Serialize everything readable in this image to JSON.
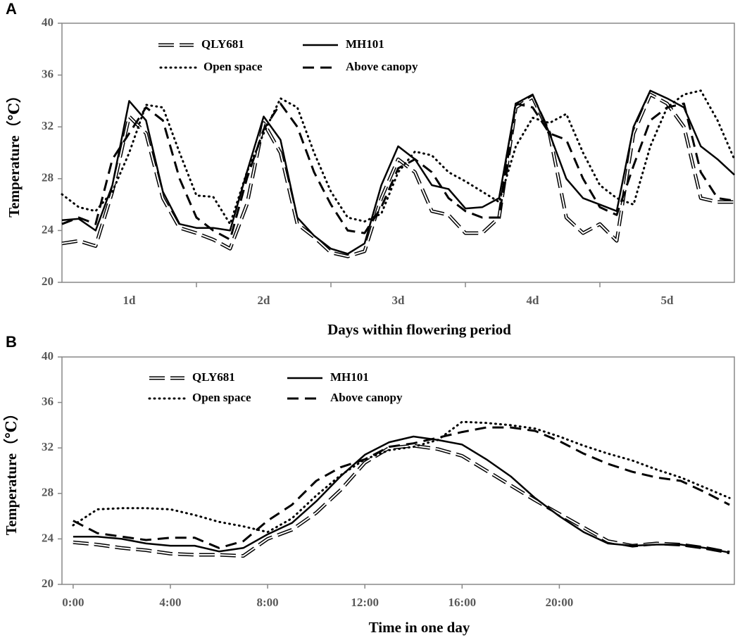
{
  "chart_data": [
    {
      "type": "line",
      "label": "A",
      "x_label": "Days within flowering period",
      "y_label": "Temperature（℃）",
      "xlim": [
        0,
        5
      ],
      "ylim": [
        20,
        40
      ],
      "xticks": [
        {
          "value": 0.5,
          "label": "1d"
        },
        {
          "value": 1.5,
          "label": "2d"
        },
        {
          "value": 2.5,
          "label": "3d"
        },
        {
          "value": 3.5,
          "label": "4d"
        },
        {
          "value": 4.5,
          "label": "5d"
        }
      ],
      "yticks": [
        20,
        24,
        28,
        32,
        36,
        40
      ],
      "x": [
        0,
        0.125,
        0.25,
        0.375,
        0.5,
        0.625,
        0.75,
        0.875,
        1,
        1.125,
        1.25,
        1.375,
        1.5,
        1.625,
        1.75,
        1.875,
        2,
        2.125,
        2.25,
        2.375,
        2.5,
        2.625,
        2.75,
        2.875,
        3,
        3.125,
        3.25,
        3.375,
        3.5,
        3.625,
        3.75,
        3.875,
        4,
        4.125,
        4.25,
        4.375,
        4.5,
        4.625,
        4.75,
        4.875,
        5
      ],
      "series": [
        {
          "name": "QLY681",
          "color": "#000000",
          "values": [
            23.0,
            23.2,
            22.8,
            27,
            32.8,
            31.5,
            26.5,
            24.2,
            23.8,
            23.3,
            22.6,
            26,
            32.3,
            30,
            24.5,
            23.5,
            22.3,
            22.0,
            22.4,
            26.5,
            29.5,
            28.5,
            25.5,
            25.2,
            23.8,
            23.8,
            25,
            33.5,
            34.3,
            31.5,
            25,
            23.8,
            24.5,
            23.2,
            31.5,
            34.5,
            33.8,
            32,
            26.5,
            26.2,
            26.2
          ]
        },
        {
          "name": "MH101",
          "color": "#000000",
          "values": [
            24.8,
            24.9,
            24,
            27.5,
            34,
            32.5,
            27,
            24.5,
            24.2,
            24.2,
            24,
            28.5,
            32.8,
            31,
            25,
            23.6,
            22.6,
            22.2,
            23,
            27.5,
            30.5,
            29.5,
            27.5,
            27.2,
            25.7,
            25.8,
            26.5,
            33.8,
            34.5,
            31.5,
            28,
            26.5,
            26,
            25.5,
            32,
            34.8,
            34.2,
            33.5,
            30.5,
            29.5,
            28.3
          ]
        },
        {
          "name": "Open space",
          "color": "#000000",
          "values": [
            26.8,
            25.8,
            25.5,
            27,
            30,
            33.7,
            33.5,
            30,
            26.7,
            26.6,
            24.5,
            28.5,
            31.5,
            34.2,
            33.5,
            30,
            27,
            25,
            24.7,
            25.3,
            28.5,
            30.1,
            29.8,
            28.5,
            27.8,
            27,
            26.2,
            30.5,
            32.7,
            32.3,
            33,
            30,
            27.5,
            26.5,
            26,
            30.5,
            33.5,
            34.5,
            34.8,
            32.5,
            29.5
          ]
        },
        {
          "name": "Above canopy",
          "color": "#000000",
          "values": [
            24.5,
            25,
            24.5,
            29.5,
            31.5,
            33.5,
            32.5,
            28,
            25,
            24,
            23.3,
            28,
            31.8,
            33.8,
            32,
            28.5,
            26,
            24,
            23.8,
            25.8,
            28.8,
            29.5,
            28.5,
            26.5,
            25.5,
            25,
            25,
            33.8,
            33.5,
            31.5,
            31,
            28,
            25.8,
            25.2,
            29,
            32.5,
            33.5,
            33.8,
            28.5,
            26.5,
            26.3
          ]
        }
      ]
    },
    {
      "type": "line",
      "label": "B",
      "x_label": "Time in one day",
      "y_label": "Temperature（℃）",
      "xlim": [
        -0.46,
        27.2
      ],
      "ylim": [
        20,
        40
      ],
      "xticks": [
        {
          "value": 0,
          "label": "0:00"
        },
        {
          "value": 4,
          "label": "4:00"
        },
        {
          "value": 8,
          "label": "8:00"
        },
        {
          "value": 12,
          "label": "12:00"
        },
        {
          "value": 16,
          "label": "16:00"
        },
        {
          "value": 20,
          "label": "20:00"
        }
      ],
      "yticks": [
        20,
        24,
        28,
        32,
        36,
        40
      ],
      "x": [
        0,
        1,
        2,
        3,
        4,
        5,
        6,
        7,
        8,
        9,
        10,
        11,
        12,
        13,
        14,
        15,
        16,
        17,
        18,
        19,
        20,
        21,
        22,
        23,
        24,
        25,
        26,
        27
      ],
      "series": [
        {
          "name": "QLY681",
          "color": "#000000",
          "values": [
            23.7,
            23.5,
            23.2,
            23.0,
            22.7,
            22.6,
            22.6,
            22.5,
            24.0,
            24.8,
            26.3,
            28.3,
            30.7,
            32.0,
            32.2,
            31.9,
            31.3,
            30.0,
            28.7,
            27.4,
            26.2,
            25.0,
            23.8,
            23.4,
            23.6,
            23.5,
            23.2,
            22.8
          ]
        },
        {
          "name": "MH101",
          "color": "#000000",
          "values": [
            24.2,
            24.2,
            24.0,
            23.6,
            23.4,
            23.4,
            22.9,
            23.2,
            24.4,
            25.4,
            27.3,
            29.5,
            31.4,
            32.5,
            33.0,
            32.7,
            32.3,
            31.0,
            29.5,
            27.6,
            26.0,
            24.6,
            23.6,
            23.4,
            23.5,
            23.5,
            23.2,
            22.8
          ]
        },
        {
          "name": "Open space",
          "color": "#000000",
          "values": [
            25.2,
            26.6,
            26.7,
            26.7,
            26.6,
            26.1,
            25.5,
            25.1,
            24.6,
            25.8,
            27.8,
            29.6,
            31.0,
            31.8,
            32.1,
            32.7,
            34.3,
            34.2,
            34.0,
            33.7,
            33.0,
            32.2,
            31.5,
            30.9,
            30.1,
            29.4,
            28.5,
            27.6
          ]
        },
        {
          "name": "Above canopy",
          "color": "#000000",
          "values": [
            25.6,
            24.5,
            24.2,
            23.9,
            24.1,
            24.1,
            23.2,
            23.8,
            25.6,
            27.0,
            29.1,
            30.3,
            31.0,
            32.1,
            32.4,
            32.9,
            33.4,
            33.8,
            33.8,
            33.5,
            32.6,
            31.5,
            30.6,
            29.9,
            29.4,
            29.1,
            28.1,
            27.0
          ]
        }
      ]
    }
  ]
}
